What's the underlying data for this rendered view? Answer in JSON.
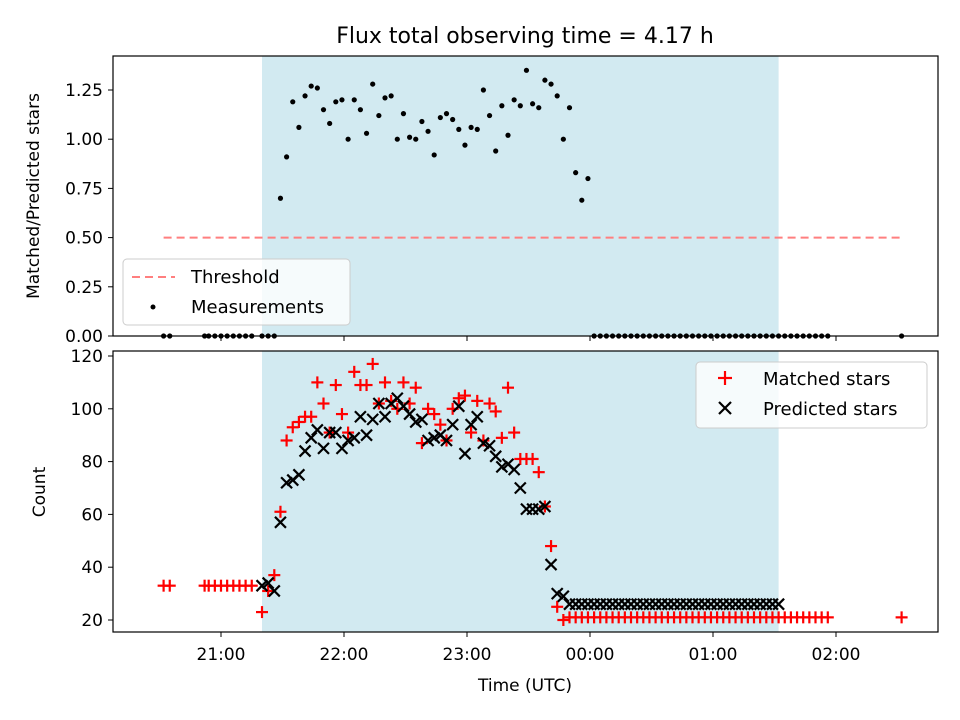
{
  "colors": {
    "shade": "#add8e6",
    "threshold": "#ff7f7f",
    "measurement": "#000000",
    "matched": "#ff0000",
    "predicted": "#000000"
  },
  "chart_data": [
    {
      "type": "scatter",
      "title": "Flux total observing time = 4.17 h",
      "xlabel": "",
      "ylabel": "Matched/Predicted stars",
      "ylim": [
        0,
        1.43
      ],
      "yticks": [
        "0.00",
        "0.25",
        "0.50",
        "0.75",
        "1.00",
        "1.25"
      ],
      "x_unit": "minutes since 20:00 UTC",
      "shaded_span": [
        "21:20",
        "01:32"
      ],
      "legend": {
        "placement": "lower-left",
        "entries": [
          "Threshold",
          "Measurements"
        ]
      },
      "threshold": {
        "name": "Threshold",
        "value": 0.5,
        "x_start": "20:32",
        "x_end": "02:32"
      },
      "series": [
        {
          "name": "Measurements",
          "x": [
            "20:32",
            "20:35",
            "20:52",
            "20:54",
            "20:57",
            "21:00",
            "21:03",
            "21:06",
            "21:09",
            "21:12",
            "21:15",
            "21:20",
            "21:23",
            "21:26",
            "21:29",
            "21:32",
            "21:35",
            "21:38",
            "21:41",
            "21:44",
            "21:47",
            "21:50",
            "21:53",
            "21:56",
            "21:59",
            "22:02",
            "22:05",
            "22:08",
            "22:11",
            "22:14",
            "22:17",
            "22:20",
            "22:23",
            "22:26",
            "22:29",
            "22:32",
            "22:35",
            "22:38",
            "22:41",
            "22:44",
            "22:47",
            "22:50",
            "22:53",
            "22:56",
            "22:59",
            "23:02",
            "23:05",
            "23:08",
            "23:11",
            "23:14",
            "23:17",
            "23:20",
            "23:23",
            "23:26",
            "23:29",
            "23:32",
            "23:35",
            "23:38",
            "23:41",
            "23:44",
            "23:47",
            "23:50",
            "23:53",
            "23:56",
            "23:59",
            "00:02",
            "00:05",
            "00:08",
            "00:11",
            "00:14",
            "00:17",
            "00:20",
            "00:23",
            "00:26",
            "00:29",
            "00:32",
            "00:35",
            "00:38",
            "00:41",
            "00:44",
            "00:47",
            "00:50",
            "00:53",
            "00:56",
            "00:59",
            "01:02",
            "01:05",
            "01:08",
            "01:11",
            "01:14",
            "01:17",
            "01:20",
            "01:23",
            "01:26",
            "01:29",
            "01:32",
            "01:35",
            "01:38",
            "01:41",
            "01:44",
            "01:47",
            "01:50",
            "01:53",
            "01:56",
            "02:32"
          ],
          "y": [
            0,
            0,
            0,
            0,
            0,
            0,
            0,
            0,
            0,
            0,
            0,
            0,
            0,
            0,
            0.7,
            0.91,
            1.19,
            1.06,
            1.22,
            1.27,
            1.26,
            1.15,
            1.08,
            1.19,
            1.2,
            1.0,
            1.2,
            1.15,
            1.03,
            1.28,
            1.12,
            1.21,
            1.22,
            1.0,
            1.13,
            1.01,
            1.0,
            1.09,
            1.04,
            0.92,
            1.11,
            1.13,
            1.1,
            1.05,
            0.97,
            1.06,
            1.05,
            1.25,
            1.12,
            0.94,
            1.17,
            1.02,
            1.2,
            1.17,
            1.35,
            1.18,
            1.16,
            1.3,
            1.28,
            1.22,
            1.0,
            1.16,
            0.83,
            0.69,
            0.8,
            0,
            0,
            0,
            0,
            0,
            0,
            0,
            0,
            0,
            0,
            0,
            0,
            0,
            0,
            0,
            0,
            0,
            0,
            0,
            0,
            0,
            0,
            0,
            0,
            0,
            0,
            0,
            0,
            0,
            0,
            0,
            0,
            0,
            0,
            0,
            0,
            0,
            0,
            0,
            0
          ],
          "x_note": "",
          "y_note": ""
        }
      ]
    },
    {
      "type": "scatter",
      "title": "",
      "xlabel": "Time (UTC)",
      "ylabel": "Count",
      "ylim": [
        15,
        122
      ],
      "yticks": [
        "20",
        "40",
        "60",
        "80",
        "100",
        "120"
      ],
      "xticks": [
        "21:00",
        "22:00",
        "23:00",
        "00:00",
        "01:00",
        "02:00"
      ],
      "shaded_span": [
        "21:20",
        "01:32"
      ],
      "legend": {
        "placement": "upper-right",
        "entries": [
          "Matched stars",
          "Predicted stars"
        ]
      },
      "series": [
        {
          "name": "Matched stars",
          "x": [
            "20:32",
            "20:35",
            "20:52",
            "20:54",
            "20:57",
            "21:00",
            "21:03",
            "21:06",
            "21:09",
            "21:12",
            "21:15",
            "21:20",
            "21:23",
            "21:26",
            "21:29",
            "21:32",
            "21:35",
            "21:38",
            "21:41",
            "21:44",
            "21:47",
            "21:50",
            "21:53",
            "21:56",
            "21:59",
            "22:02",
            "22:05",
            "22:08",
            "22:11",
            "22:14",
            "22:17",
            "22:20",
            "22:23",
            "22:26",
            "22:29",
            "22:32",
            "22:35",
            "22:38",
            "22:41",
            "22:44",
            "22:47",
            "22:50",
            "22:53",
            "22:56",
            "22:59",
            "23:02",
            "23:05",
            "23:08",
            "23:11",
            "23:14",
            "23:17",
            "23:20",
            "23:23",
            "23:26",
            "23:29",
            "23:32",
            "23:35",
            "23:38",
            "23:41",
            "23:44",
            "23:47",
            "23:50",
            "23:53",
            "23:56",
            "23:59",
            "00:02",
            "00:05",
            "00:08",
            "00:11",
            "00:14",
            "00:17",
            "00:20",
            "00:23",
            "00:26",
            "00:29",
            "00:32",
            "00:35",
            "00:38",
            "00:41",
            "00:44",
            "00:47",
            "00:50",
            "00:53",
            "00:56",
            "00:59",
            "01:02",
            "01:05",
            "01:08",
            "01:11",
            "01:14",
            "01:17",
            "01:20",
            "01:23",
            "01:26",
            "01:29",
            "01:32",
            "01:35",
            "01:38",
            "01:41",
            "01:44",
            "01:47",
            "01:50",
            "01:53",
            "01:56",
            "02:32"
          ],
          "y": [
            33,
            33,
            33,
            33,
            33,
            33,
            33,
            33,
            33,
            33,
            33,
            23,
            31,
            37,
            61,
            88,
            93,
            95,
            97,
            97,
            110,
            102,
            91,
            109,
            98,
            91,
            114,
            109,
            109,
            117,
            102,
            110,
            103,
            100,
            110,
            102,
            108,
            87,
            100,
            98,
            94,
            88,
            100,
            104,
            105,
            91,
            103,
            88,
            102,
            99,
            89,
            108,
            91,
            81,
            81,
            81,
            76,
            63,
            48,
            25,
            20,
            21,
            21,
            21,
            21,
            21,
            21,
            21,
            21,
            21,
            21,
            21,
            21,
            21,
            21,
            21,
            21,
            21,
            21,
            21,
            21,
            21,
            21,
            21,
            21,
            21,
            21,
            21,
            21,
            21,
            21,
            21,
            21,
            21,
            21,
            21,
            21,
            21,
            21,
            21,
            21,
            21,
            21,
            21,
            21
          ]
        },
        {
          "name": "Predicted stars",
          "x": [
            "21:20",
            "21:23",
            "21:26",
            "21:29",
            "21:32",
            "21:35",
            "21:38",
            "21:41",
            "21:44",
            "21:47",
            "21:50",
            "21:53",
            "21:56",
            "21:59",
            "22:02",
            "22:05",
            "22:08",
            "22:11",
            "22:14",
            "22:17",
            "22:20",
            "22:23",
            "22:26",
            "22:29",
            "22:32",
            "22:35",
            "22:38",
            "22:41",
            "22:44",
            "22:47",
            "22:50",
            "22:53",
            "22:56",
            "22:59",
            "23:02",
            "23:05",
            "23:08",
            "23:11",
            "23:14",
            "23:17",
            "23:20",
            "23:23",
            "23:26",
            "23:29",
            "23:32",
            "23:35",
            "23:38",
            "23:41",
            "23:44",
            "23:47",
            "23:50",
            "23:53",
            "23:56",
            "23:59",
            "00:02",
            "00:05",
            "00:08",
            "00:11",
            "00:14",
            "00:17",
            "00:20",
            "00:23",
            "00:26",
            "00:29",
            "00:32",
            "00:35",
            "00:38",
            "00:41",
            "00:44",
            "00:47",
            "00:50",
            "00:53",
            "00:56",
            "00:59",
            "01:02",
            "01:05",
            "01:08",
            "01:11",
            "01:14",
            "01:17",
            "01:20",
            "01:23",
            "01:26",
            "01:29",
            "01:32"
          ],
          "y": [
            33,
            34,
            31,
            57,
            72,
            73,
            75,
            84,
            89,
            92,
            85,
            91,
            91,
            85,
            88,
            89,
            97,
            90,
            96,
            102,
            97,
            102,
            104,
            101,
            98,
            95,
            96,
            88,
            89,
            90,
            88,
            94,
            101,
            83,
            94,
            97,
            87,
            86,
            82,
            78,
            79,
            77,
            70,
            62,
            62,
            62,
            63,
            41,
            30,
            29,
            26,
            26,
            26,
            26,
            26,
            26,
            26,
            26,
            26,
            26,
            26,
            26,
            26,
            26,
            26,
            26,
            26,
            26,
            26,
            26,
            26,
            26,
            26,
            26,
            26,
            26,
            26,
            26,
            26,
            26,
            26,
            26,
            26,
            26,
            26
          ]
        }
      ]
    }
  ]
}
